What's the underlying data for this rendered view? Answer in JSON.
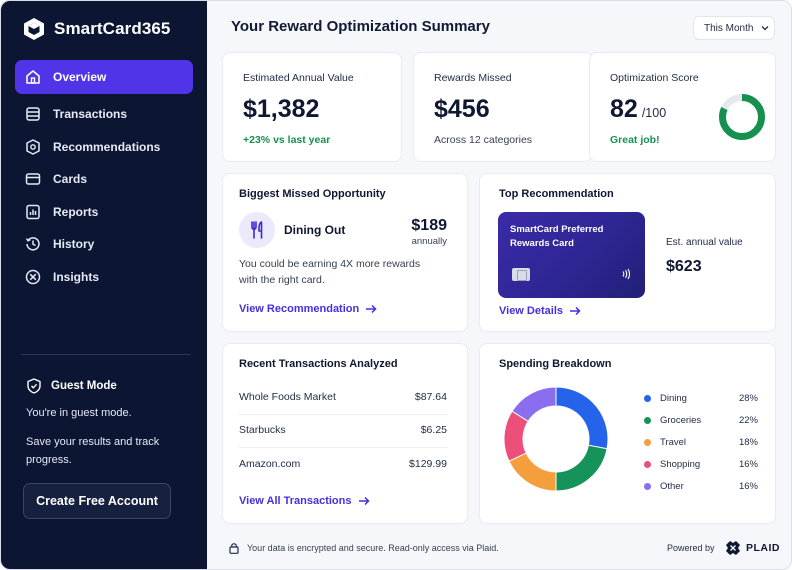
{
  "app": {
    "name": "SmartCard365",
    "logo_icon": "cube-logo-icon"
  },
  "sidebar": {
    "items": [
      {
        "label": "Overview",
        "icon": "home-icon",
        "active": true
      },
      {
        "label": "Transactions",
        "icon": "list-icon",
        "active": false
      },
      {
        "label": "Recommendations",
        "icon": "badge-icon",
        "active": false
      },
      {
        "label": "Cards",
        "icon": "card-icon",
        "active": false
      },
      {
        "label": "Reports",
        "icon": "report-icon",
        "active": false
      },
      {
        "label": "History",
        "icon": "history-icon",
        "active": false
      },
      {
        "label": "Insights",
        "icon": "compass-icon",
        "active": false
      }
    ],
    "guest": {
      "title": "Guest Mode",
      "text": "You're in guest mode.",
      "save_text": "Save your results and track progress.",
      "button": "Create Free Account"
    }
  },
  "header": {
    "title": "Your Reward Optimization Summary",
    "period": "This Month"
  },
  "stats": {
    "annual": {
      "label": "Estimated Annual Value",
      "value": "$1,382",
      "sub": "+23% vs last year"
    },
    "missed": {
      "label": "Rewards Missed",
      "value": "$456",
      "sub": "Across 12 categories"
    },
    "score": {
      "label": "Optimization Score",
      "value": "82",
      "out_of": "/100",
      "sub": "Great job!",
      "fraction": 0.82
    }
  },
  "missed_opportunity": {
    "title": "Biggest Missed Opportunity",
    "category": "Dining Out",
    "amount": "$189",
    "period": "annually",
    "description": "You could be earning 4X more rewards with the right card.",
    "link": "View Recommendation"
  },
  "top_recommendation": {
    "title": "Top Recommendation",
    "card_name": "SmartCard Preferred Rewards Card",
    "est_label": "Est. annual value",
    "est_value": "$623",
    "link": "View Details"
  },
  "transactions": {
    "title": "Recent Transactions Analyzed",
    "rows": [
      {
        "merchant": "Whole Foods Market",
        "amount": "$87.64"
      },
      {
        "merchant": "Starbucks",
        "amount": "$6.25"
      },
      {
        "merchant": "Amazon.com",
        "amount": "$129.99"
      }
    ],
    "link": "View All Transactions"
  },
  "spending": {
    "title": "Spending Breakdown",
    "categories": [
      {
        "name": "Dining",
        "pct": "28%",
        "value": 28,
        "color": "#2563eb"
      },
      {
        "name": "Groceries",
        "pct": "22%",
        "value": 22,
        "color": "#16935a"
      },
      {
        "name": "Travel",
        "pct": "18%",
        "value": 18,
        "color": "#f59e3c"
      },
      {
        "name": "Shopping",
        "pct": "16%",
        "value": 16,
        "color": "#ec4f7a"
      },
      {
        "name": "Other",
        "pct": "16%",
        "value": 16,
        "color": "#8b6df0"
      }
    ]
  },
  "footer": {
    "security": "Your data is encrypted and secure. Read-only access via Plaid.",
    "powered_by": "Powered by",
    "partner": "PLAID"
  }
}
